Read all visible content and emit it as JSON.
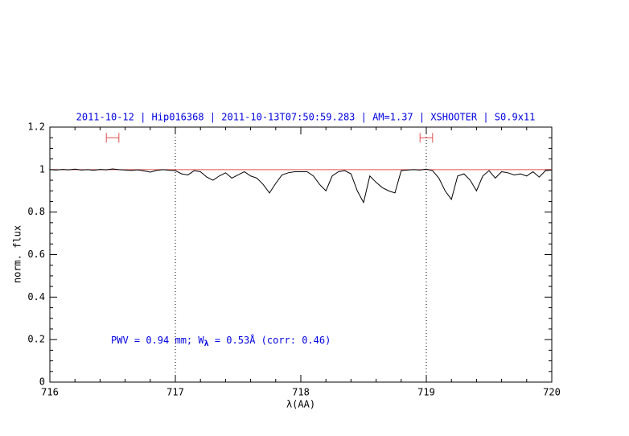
{
  "chart_data": {
    "type": "line",
    "title": "2011-10-12 | Hip016368 | 2011-10-13T07:50:59.283 | AM=1.37 | XSHOOTER | S0.9x11",
    "x_label": "λ(AA)",
    "y_label": "norm. flux",
    "annotation": [
      "PWV = 0.94 mm; W",
      "λ",
      " = 0.53Å (corr: 0.46)"
    ],
    "xlim": [
      716,
      720
    ],
    "xticks": [
      716,
      717,
      718,
      719,
      720
    ],
    "ylim": [
      0,
      1.2
    ],
    "yticks": [
      0,
      0.2,
      0.4,
      0.6,
      0.8,
      1,
      1.2
    ],
    "vlines": [
      717,
      719
    ],
    "continuum": 1,
    "continuum_color": "#e05050",
    "intervals": [
      {
        "x": [
          716.45,
          716.55
        ],
        "y": 1.15
      },
      {
        "x": [
          718.95,
          719.05
        ],
        "y": 1.15
      }
    ],
    "series": [
      {
        "color": "#000000",
        "x": [
          716,
          716.05,
          716.1,
          716.15,
          716.2,
          716.25,
          716.3,
          716.35,
          716.4,
          716.45,
          716.5,
          716.55,
          716.6,
          716.65,
          716.7,
          716.75,
          716.8,
          716.85,
          716.9,
          716.95,
          717,
          717.05,
          717.1,
          717.15,
          717.2,
          717.25,
          717.3,
          717.35,
          717.4,
          717.45,
          717.5,
          717.55,
          717.6,
          717.65,
          717.7,
          717.75,
          717.8,
          717.85,
          717.9,
          717.95,
          718,
          718.05,
          718.1,
          718.15,
          718.2,
          718.25,
          718.3,
          718.35,
          718.4,
          718.45,
          718.5,
          718.55,
          718.6,
          718.65,
          718.7,
          718.75,
          718.8,
          718.85,
          718.9,
          718.95,
          719,
          719.05,
          719.1,
          719.15,
          719.2,
          719.25,
          719.3,
          719.35,
          719.4,
          719.45,
          719.5,
          719.55,
          719.6,
          719.65,
          719.7,
          719.75,
          719.8,
          719.85,
          719.9,
          719.95,
          720
        ],
        "values": [
          1.0,
          0.998,
          1.001,
          0.999,
          1.002,
          0.998,
          1.0,
          0.997,
          1.001,
          0.999,
          1.003,
          1.0,
          0.998,
          0.996,
          0.999,
          0.994,
          0.988,
          0.996,
          1.0,
          0.997,
          0.995,
          0.98,
          0.975,
          0.995,
          0.99,
          0.965,
          0.95,
          0.97,
          0.985,
          0.96,
          0.975,
          0.99,
          0.97,
          0.96,
          0.93,
          0.89,
          0.935,
          0.975,
          0.985,
          0.99,
          0.99,
          0.99,
          0.97,
          0.93,
          0.9,
          0.97,
          0.99,
          0.995,
          0.98,
          0.9,
          0.845,
          0.97,
          0.94,
          0.915,
          0.9,
          0.89,
          0.995,
          0.998,
          1.0,
          0.998,
          1.002,
          0.995,
          0.96,
          0.9,
          0.86,
          0.97,
          0.98,
          0.95,
          0.9,
          0.97,
          0.995,
          0.96,
          0.99,
          0.985,
          0.975,
          0.98,
          0.97,
          0.99,
          0.965,
          0.995,
          0.998
        ]
      }
    ],
    "title_color": "#0000e0"
  }
}
